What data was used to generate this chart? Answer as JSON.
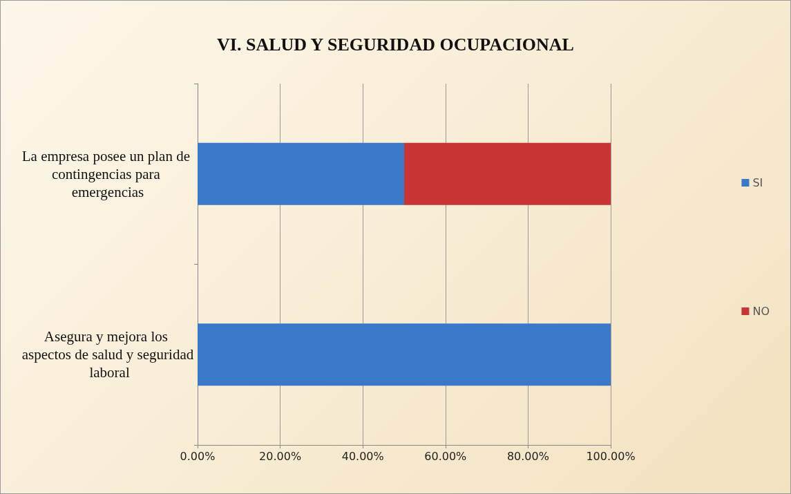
{
  "chart_data": {
    "type": "bar",
    "orientation": "horizontal",
    "stacked": true,
    "title": "VI. SALUD Y SEGURIDAD OCUPACIONAL",
    "categories": [
      "La empresa posee un plan de contingencias para emergencias",
      "Asegura y mejora los aspectos de salud y seguridad laboral"
    ],
    "series": [
      {
        "name": "SI",
        "color": "#3a78c9",
        "values": [
          50,
          100
        ]
      },
      {
        "name": "NO",
        "color": "#c93434",
        "values": [
          50,
          0
        ]
      }
    ],
    "xlim": [
      0,
      100
    ],
    "xticks": [
      {
        "value": 0,
        "label": "0.00%"
      },
      {
        "value": 20,
        "label": "20.00%"
      },
      {
        "value": 40,
        "label": "40.00%"
      },
      {
        "value": 60,
        "label": "60.00%"
      },
      {
        "value": 80,
        "label": "80.00%"
      },
      {
        "value": 100,
        "label": "100.00%"
      }
    ],
    "grid": "x",
    "legend": "right"
  }
}
